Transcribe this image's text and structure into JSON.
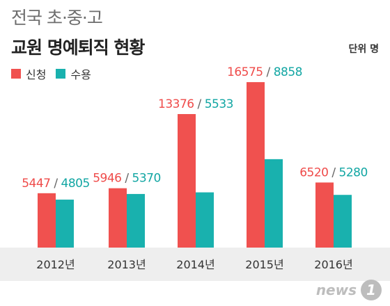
{
  "title_line1": "전국 초·중·고",
  "title_line2": "교원 명예퇴직 현황",
  "unit": "단위 명",
  "legend": [
    {
      "label": "신청",
      "color": "#f0514f"
    },
    {
      "label": "수용",
      "color": "#19b1ae"
    }
  ],
  "colors": {
    "apply": "#f0514f",
    "accept": "#19b1ae",
    "apply_label": "#ef4b4a",
    "accept_label": "#12a6a3",
    "axis_band": "#eeeeee"
  },
  "logo": {
    "text": "news",
    "mark": "1"
  },
  "chart_data": {
    "type": "bar",
    "categories": [
      "2012년",
      "2013년",
      "2014년",
      "2015년",
      "2016년"
    ],
    "series": [
      {
        "name": "신청",
        "values": [
          5447,
          5946,
          13376,
          16575,
          6520
        ]
      },
      {
        "name": "수용",
        "values": [
          4805,
          5370,
          5533,
          8858,
          5280
        ]
      }
    ],
    "ylim": [
      0,
      17000
    ],
    "title": "교원 명예퇴직 현황",
    "xlabel": "",
    "ylabel": ""
  }
}
